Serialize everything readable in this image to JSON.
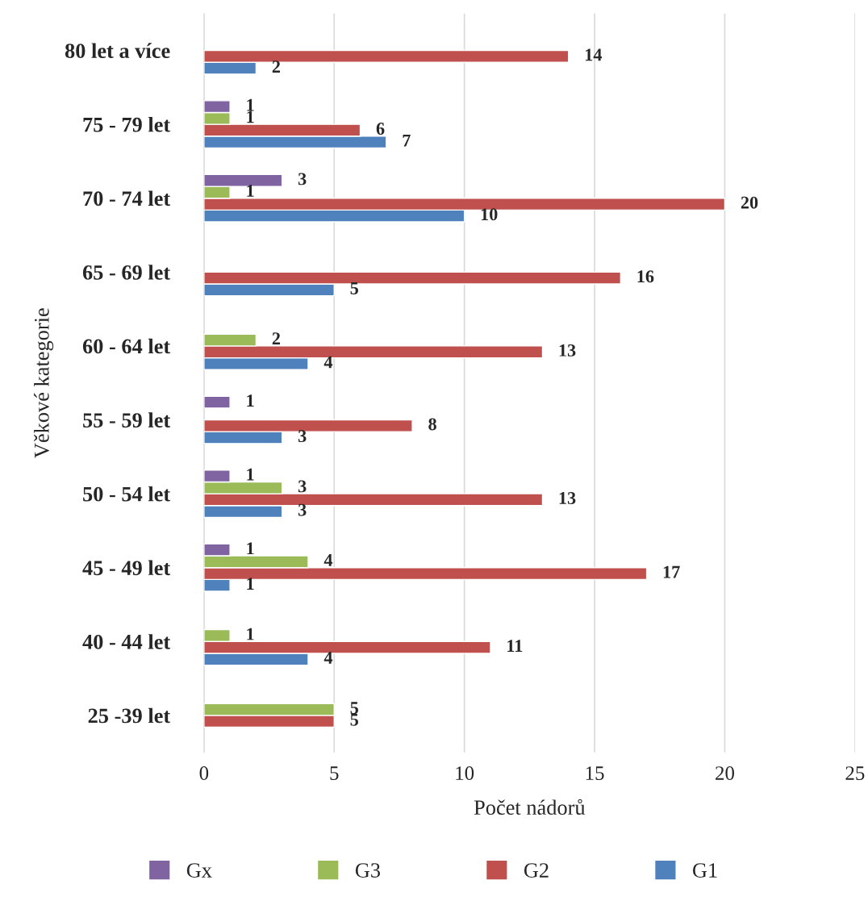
{
  "chart_data": {
    "type": "bar",
    "orientation": "horizontal",
    "xlabel": "Počet nádorů",
    "ylabel": "Věkové kategorie",
    "categories": [
      "80 let a více",
      "75 - 79 let",
      "70 - 74 let",
      "65 - 69 let",
      "60 - 64 let",
      "55 - 59 let",
      "50 - 54 let",
      "45 - 49 let",
      "40 - 44 let",
      "25 -39 let"
    ],
    "series": [
      {
        "name": "G1",
        "color": "#4f81bd",
        "values": [
          2,
          7,
          10,
          5,
          4,
          3,
          3,
          1,
          4,
          null
        ]
      },
      {
        "name": "G2",
        "color": "#c0504d",
        "values": [
          14,
          6,
          20,
          16,
          13,
          8,
          13,
          17,
          11,
          5
        ]
      },
      {
        "name": "G3",
        "color": "#9bbb59",
        "values": [
          null,
          1,
          1,
          null,
          2,
          null,
          3,
          4,
          1,
          5
        ]
      },
      {
        "name": "Gx",
        "color": "#8064a2",
        "values": [
          null,
          1,
          3,
          null,
          null,
          1,
          1,
          1,
          null,
          null
        ]
      }
    ],
    "xlim": [
      0,
      25
    ],
    "xticks": [
      0,
      5,
      10,
      15,
      20,
      25
    ],
    "grid": "x",
    "legend": "bottom",
    "data_labels": true
  }
}
